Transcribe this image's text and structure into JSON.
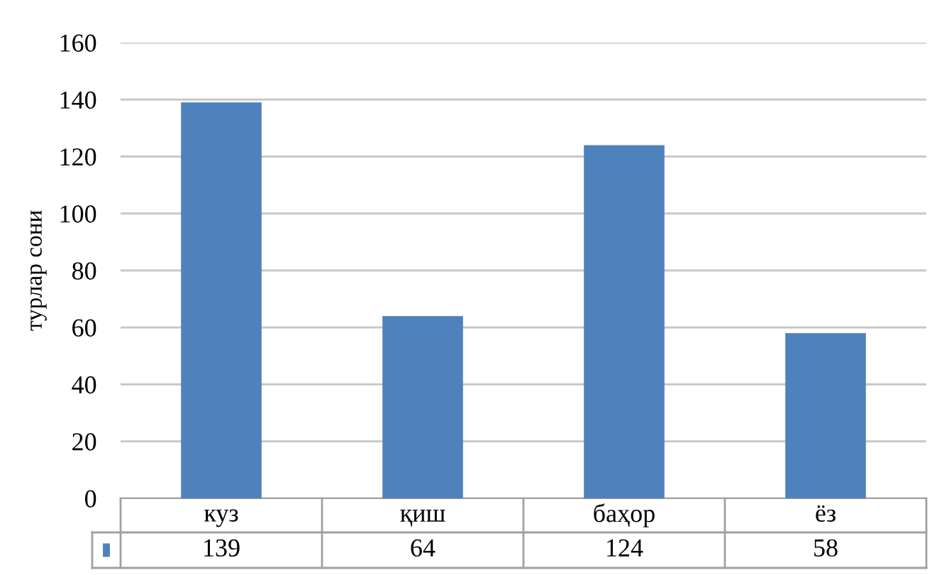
{
  "chart_data": {
    "type": "bar",
    "ylabel": "турлар сони",
    "categories": [
      "куз",
      "қиш",
      "баҳор",
      "ёз"
    ],
    "values": [
      139,
      64,
      124,
      58
    ],
    "color": "#4f81bd",
    "ylim": [
      0,
      160
    ],
    "yticks": [
      0,
      20,
      40,
      60,
      80,
      100,
      120,
      140,
      160
    ],
    "grid": "y",
    "data_labels": true
  }
}
